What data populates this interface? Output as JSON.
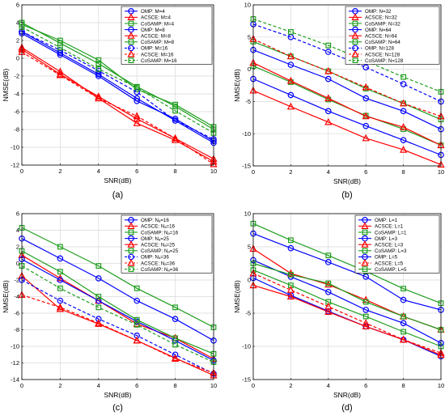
{
  "chart_data": [
    {
      "type": "line",
      "panel_label": "(a)",
      "xlabel": "SNR(dB)",
      "ylabel": "NMSE(dB)",
      "xlim": [
        0,
        10
      ],
      "ylim": [
        -12,
        6
      ],
      "xticks": [
        "0",
        "2",
        "4",
        "6",
        "8",
        "10"
      ],
      "yticks": [
        "-12",
        "-10",
        "-8",
        "-6",
        "-4",
        "-2",
        "0",
        "2",
        "4",
        "6"
      ],
      "grid": true,
      "legend_position": "top-right",
      "x": [
        0,
        2,
        4,
        6,
        8,
        10
      ],
      "series": [
        {
          "name": "OMP: M=4",
          "color": "#0000ff",
          "marker": "circle",
          "dash": "solid",
          "values": [
            3.0,
            0.6,
            -1.8,
            -4.5,
            -7.0,
            -9.5
          ]
        },
        {
          "name": "ACSCE: M=4",
          "color": "#ff0000",
          "marker": "triangle",
          "dash": "solid",
          "values": [
            1.0,
            -1.8,
            -4.3,
            -6.8,
            -9.0,
            -11.3
          ]
        },
        {
          "name": "CoSAMP: M=4",
          "color": "#1e9e1e",
          "marker": "square",
          "dash": "solid",
          "values": [
            4.0,
            1.7,
            -0.6,
            -3.2,
            -5.4,
            -8.0
          ]
        },
        {
          "name": "OMP: M=8",
          "color": "#0000ff",
          "marker": "circle",
          "dash": "solid",
          "values": [
            2.8,
            0.4,
            -2.0,
            -4.8,
            -6.8,
            -9.3
          ]
        },
        {
          "name": "ACSCE: M=8",
          "color": "#ff0000",
          "marker": "triangle",
          "dash": "solid",
          "values": [
            1.2,
            -1.5,
            -4.5,
            -7.3,
            -9.2,
            -11.6
          ]
        },
        {
          "name": "CoSAMP: M=8",
          "color": "#1e9e1e",
          "marker": "square",
          "dash": "solid",
          "values": [
            3.8,
            2.0,
            -0.2,
            -3.5,
            -5.2,
            -7.7
          ]
        },
        {
          "name": "OMP: M=16",
          "color": "#0000ff",
          "marker": "circle",
          "dash": "dashed",
          "values": [
            3.0,
            0.9,
            -1.4,
            -3.8,
            -7.0,
            -9.1
          ]
        },
        {
          "name": "ACSCE: M=16",
          "color": "#ff0000",
          "marker": "triangle",
          "dash": "dashed",
          "values": [
            0.7,
            -1.9,
            -4.5,
            -6.5,
            -9.0,
            -11.9
          ]
        },
        {
          "name": "CoSAMP: M=16",
          "color": "#1e9e1e",
          "marker": "square",
          "dash": "dashed",
          "values": [
            3.5,
            1.2,
            -1.2,
            -3.3,
            -5.9,
            -8.4
          ]
        }
      ]
    },
    {
      "type": "line",
      "panel_label": "(b)",
      "xlabel": "SNR(dB)",
      "ylabel": "NMSE(dB)",
      "xlim": [
        0,
        10
      ],
      "ylim": [
        -15,
        10
      ],
      "xticks": [
        "0",
        "2",
        "4",
        "6",
        "8",
        "10"
      ],
      "yticks": [
        "-15",
        "-10",
        "-5",
        "0",
        "5",
        "10"
      ],
      "grid": true,
      "legend_position": "top-right",
      "x": [
        0,
        2,
        4,
        6,
        8,
        10
      ],
      "series": [
        {
          "name": "OMP: N=32",
          "color": "#0000ff",
          "marker": "circle",
          "dash": "solid",
          "values": [
            -1.5,
            -4.0,
            -6.5,
            -8.8,
            -11.0,
            -13.3
          ]
        },
        {
          "name": "ACSCE: N=32",
          "color": "#ff0000",
          "marker": "triangle",
          "dash": "solid",
          "values": [
            -3.3,
            -5.8,
            -8.2,
            -10.7,
            -12.5,
            -14.8
          ]
        },
        {
          "name": "CoSAMP: N=32",
          "color": "#1e9e1e",
          "marker": "square",
          "dash": "solid",
          "values": [
            0.5,
            -2.0,
            -4.7,
            -7.2,
            -9.3,
            -11.8
          ]
        },
        {
          "name": "OMP: N=64",
          "color": "#0000ff",
          "marker": "circle",
          "dash": "solid",
          "values": [
            3.0,
            0.7,
            -1.5,
            -4.5,
            -6.5,
            -9.3
          ]
        },
        {
          "name": "ACSCE: N=64",
          "color": "#ff0000",
          "marker": "triangle",
          "dash": "solid",
          "values": [
            1.0,
            -1.8,
            -4.5,
            -7.3,
            -9.0,
            -11.8
          ]
        },
        {
          "name": "CoSAMP: N=64",
          "color": "#1e9e1e",
          "marker": "square",
          "dash": "solid",
          "values": [
            4.3,
            2.0,
            -0.3,
            -3.0,
            -5.3,
            -7.8
          ]
        },
        {
          "name": "OMP: N=128",
          "color": "#0000ff",
          "marker": "circle",
          "dash": "dashed",
          "values": [
            7.0,
            5.0,
            2.7,
            0.3,
            -2.3,
            -5.0
          ]
        },
        {
          "name": "ACSCE: N=128",
          "color": "#ff0000",
          "marker": "triangle",
          "dash": "dashed",
          "values": [
            4.7,
            2.0,
            -0.3,
            -2.8,
            -5.3,
            -7.3
          ]
        },
        {
          "name": "CoSAMP: N=128",
          "color": "#1e9e1e",
          "marker": "square",
          "dash": "dashed",
          "values": [
            7.8,
            5.8,
            3.7,
            1.3,
            -1.2,
            -3.5
          ]
        }
      ]
    },
    {
      "type": "line",
      "panel_label": "(c)",
      "xlabel": "SNR(dB)",
      "ylabel": "NMSE(dB)",
      "xlim": [
        0,
        10
      ],
      "ylim": [
        -14,
        6
      ],
      "xticks": [
        "0",
        "2",
        "4",
        "6",
        "8",
        "10"
      ],
      "yticks": [
        "-14",
        "-12",
        "-10",
        "-8",
        "-6",
        "-4",
        "-2",
        "0",
        "2",
        "4",
        "6"
      ],
      "grid": true,
      "legend_position": "top-right",
      "x": [
        0,
        2,
        4,
        6,
        8,
        10
      ],
      "series": [
        {
          "name": "OMP: Nₐ=16",
          "color": "#0000ff",
          "marker": "circle",
          "dash": "solid",
          "values": [
            3.0,
            0.6,
            -1.8,
            -4.5,
            -6.7,
            -9.3
          ]
        },
        {
          "name": "ACSCE: Nₐ=16",
          "color": "#ff0000",
          "marker": "triangle",
          "dash": "solid",
          "values": [
            1.0,
            -1.8,
            -4.5,
            -7.3,
            -9.0,
            -11.5
          ]
        },
        {
          "name": "CoSAMP: Nₐ=16",
          "color": "#1e9e1e",
          "marker": "square",
          "dash": "solid",
          "values": [
            4.3,
            2.0,
            -0.3,
            -3.0,
            -5.3,
            -7.7
          ]
        },
        {
          "name": "OMP: Nₐ=25",
          "color": "#0000ff",
          "marker": "circle",
          "dash": "solid",
          "values": [
            0.5,
            -2.0,
            -4.5,
            -7.0,
            -9.3,
            -11.7
          ]
        },
        {
          "name": "ACSCE: Nₐ=25",
          "color": "#ff0000",
          "marker": "triangle",
          "dash": "solid",
          "values": [
            -1.5,
            -5.5,
            -7.3,
            -9.3,
            -11.4,
            -13.5
          ]
        },
        {
          "name": "CoSAMP: Nₐ=25",
          "color": "#1e9e1e",
          "marker": "square",
          "dash": "solid",
          "values": [
            1.5,
            -1.0,
            -4.0,
            -6.8,
            -9.0,
            -10.9
          ]
        },
        {
          "name": "OMP: Nₐ=36",
          "color": "#0000ff",
          "marker": "circle",
          "dash": "dashed",
          "values": [
            -2.0,
            -4.5,
            -6.7,
            -8.7,
            -11.0,
            -13.3
          ]
        },
        {
          "name": "ACSCE: Nₐ=36",
          "color": "#ff0000",
          "marker": "triangle",
          "dash": "dashed",
          "values": [
            -3.8,
            -5.3,
            -7.2,
            -9.3,
            -11.5,
            -13.2
          ]
        },
        {
          "name": "CoSAMP: Nₐ=36",
          "color": "#1e9e1e",
          "marker": "square",
          "dash": "dashed",
          "values": [
            -0.3,
            -3.0,
            -5.3,
            -7.4,
            -9.8,
            -11.9
          ]
        }
      ]
    },
    {
      "type": "line",
      "panel_label": "(d)",
      "xlabel": "SNR(dB)",
      "ylabel": "NMSE(dB)",
      "xlim": [
        0,
        10
      ],
      "ylim": [
        -15,
        10
      ],
      "xticks": [
        "0",
        "2",
        "4",
        "6",
        "8",
        "10"
      ],
      "yticks": [
        "-15",
        "-10",
        "-5",
        "0",
        "5",
        "10"
      ],
      "grid": true,
      "legend_position": "top-right",
      "x": [
        0,
        2,
        4,
        6,
        8,
        10
      ],
      "series": [
        {
          "name": "OMP: L=1",
          "color": "#0000ff",
          "marker": "circle",
          "dash": "solid",
          "values": [
            0.3,
            -2.3,
            -4.7,
            -7.0,
            -9.0,
            -11.5
          ]
        },
        {
          "name": "ACSCE: L=1",
          "color": "#ff0000",
          "marker": "triangle",
          "dash": "solid",
          "values": [
            -0.8,
            -2.5,
            -4.8,
            -7.0,
            -9.0,
            -11.3
          ]
        },
        {
          "name": "CoSAMP: L=1",
          "color": "#1e9e1e",
          "marker": "square",
          "dash": "solid",
          "values": [
            1.5,
            -0.8,
            -3.3,
            -5.5,
            -7.8,
            -10.0
          ]
        },
        {
          "name": "OMP: L=3",
          "color": "#0000ff",
          "marker": "circle",
          "dash": "solid",
          "values": [
            3.0,
            0.5,
            -1.8,
            -4.5,
            -6.5,
            -9.5
          ]
        },
        {
          "name": "ACSCE: L=3",
          "color": "#ff0000",
          "marker": "triangle",
          "dash": "solid",
          "values": [
            4.7,
            1.0,
            -0.7,
            -3.0,
            -5.5,
            -7.5
          ]
        },
        {
          "name": "CoSAMP: L=3",
          "color": "#1e9e1e",
          "marker": "square",
          "dash": "solid",
          "values": [
            2.5,
            0.8,
            -0.5,
            -3.3,
            -5.5,
            -7.5
          ]
        },
        {
          "name": "OMP: L=5",
          "color": "#0000ff",
          "marker": "circle",
          "dash": "solid",
          "values": [
            7.0,
            4.8,
            2.7,
            0.5,
            -3.0,
            -4.5
          ]
        },
        {
          "name": "ACSCE: L=5",
          "color": "#ff0000",
          "marker": "triangle",
          "dash": "dashed",
          "values": [
            1.0,
            -1.5,
            -4.0,
            -6.5,
            -9.0,
            -11.0
          ]
        },
        {
          "name": "CoSAMP: L=5",
          "color": "#1e9e1e",
          "marker": "square",
          "dash": "solid",
          "values": [
            8.5,
            6.0,
            3.7,
            1.3,
            -1.3,
            -3.5
          ]
        }
      ]
    }
  ]
}
